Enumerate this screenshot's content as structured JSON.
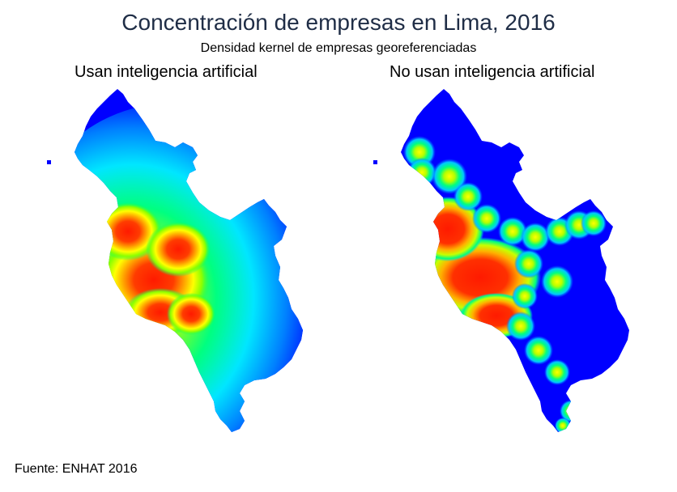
{
  "title": "Concentración de empresas en Lima, 2016",
  "subtitle": "Densidad kernel de empresas georeferenciadas",
  "panels": [
    {
      "label": "Usan inteligencia artificial"
    },
    {
      "label": "No usan inteligencia artificial"
    }
  ],
  "source": "Fuente: ENHAT 2016",
  "colors": {
    "low": "#0000ff",
    "mid_low": "#00b7ff",
    "mid": "#00ff60",
    "mid_high": "#ffff00",
    "high": "#ff2a00"
  }
}
